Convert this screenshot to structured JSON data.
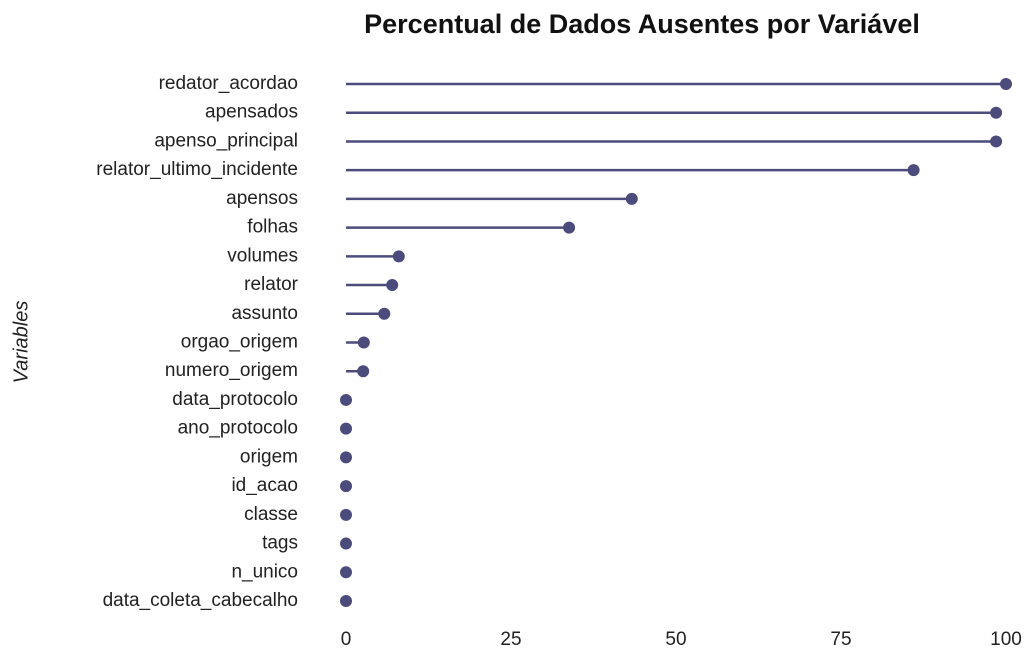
{
  "chart_data": {
    "type": "lollipop",
    "title": "Percentual de Dados Ausentes por Variável",
    "y_label": "Variables",
    "categories": [
      "redator_acordao",
      "apensados",
      "apenso_principal",
      "relator_ultimo_incidente",
      "apensos",
      "folhas",
      "volumes",
      "relator",
      "assunto",
      "orgao_origem",
      "numero_origem",
      "data_protocolo",
      "ano_protocolo",
      "origem",
      "id_acao",
      "classe",
      "tags",
      "n_unico",
      "data_coleta_cabecalho"
    ],
    "values": [
      100,
      98.5,
      98.5,
      86,
      43.3,
      33.8,
      8,
      7,
      5.8,
      2.7,
      2.6,
      0,
      0,
      0,
      0,
      0,
      0,
      0,
      0
    ],
    "color": "#4b4b7c",
    "xlim": [
      0,
      100
    ],
    "xticks": [
      0,
      25,
      50,
      75,
      100
    ],
    "grid": false
  }
}
